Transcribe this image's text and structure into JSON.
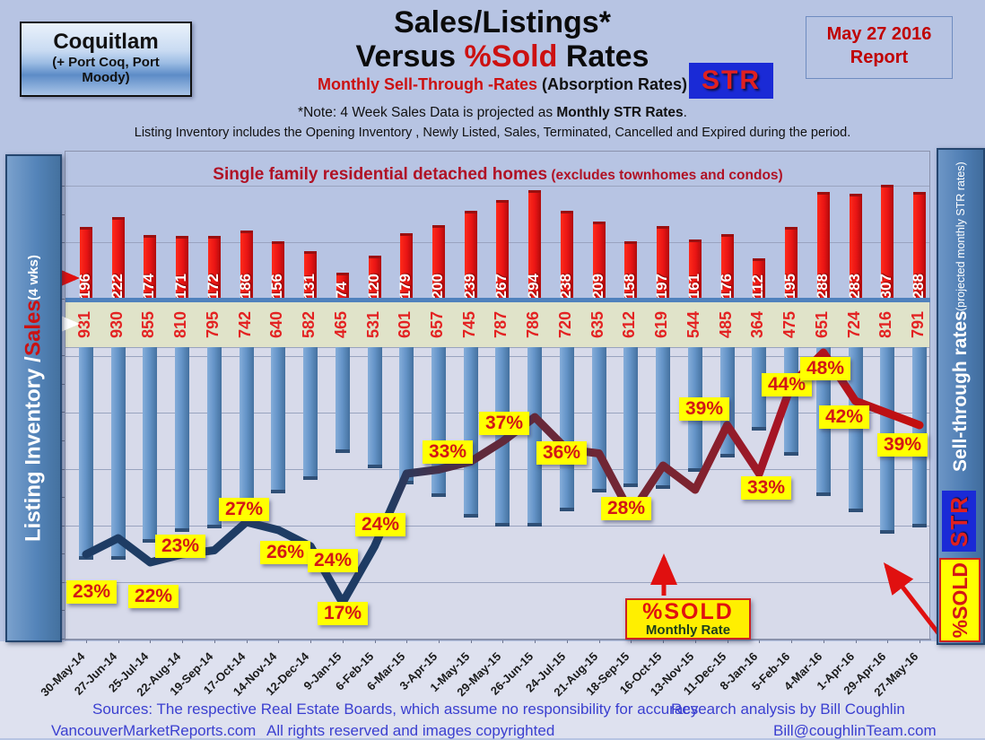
{
  "header": {
    "region_box": {
      "title": "Coquitlam",
      "subtitle": "(+ Port Coq, Port Moody)"
    },
    "title_line1": "Sales/Listings*",
    "title_line2_pre": "Versus ",
    "title_line2_highlight": "%Sold",
    "title_line2_post": " Rates",
    "subtitle_red": "Monthly Sell-Through -Rates",
    "subtitle_black": " (Absorption Rates)",
    "str_logo": "STR",
    "report_box": {
      "line1": "May 27 2016",
      "line2": "Report"
    },
    "note1_pre": "*Note: 4 Week Sales Data is projected as ",
    "note1_bold": "Monthly STR Rates",
    "note1_post": ".",
    "note2": "Listing Inventory includes the Opening Inventory , Newly Listed, Sales, Terminated, Cancelled and Expired during the period."
  },
  "left_axis": {
    "label_white": "Listing Inventory /",
    "label_red": " Sales",
    "label_small": " (4  wks)"
  },
  "right_axis": {
    "label_bold": "Sell-through rates",
    "label_small": "  (projected monthly STR rates)",
    "str_logo": "STR",
    "sold_box": "%SOLD"
  },
  "annotations": {
    "inner_title_main": "Single family residential detached homes",
    "inner_title_paren": " (excludes townhomes and condos)",
    "sold_callout_line1": "%SOLD",
    "sold_callout_line2": "Monthly Rate"
  },
  "footer": {
    "sources": "Sources:  The respective Real Estate Boards, which assume no responsibility for accuracy",
    "research": "Research analysis  by Bill Coughlin",
    "site": "VancouverMarketReports.com",
    "rights": "All rights reserved and  images copyrighted",
    "email": "Bill@coughlinTeam.com"
  },
  "chart_data": {
    "type": "combo (bar + bar + line)",
    "title": "Single family residential detached homes (excludes townhomes and condos)",
    "xlabel": "",
    "ylabel_left": "Listing Inventory / Sales (4 wks)",
    "ylabel_right": "Sell-through rates (projected monthly STR rates)",
    "grid": true,
    "legend_position": "none",
    "categories": [
      "30-May-14",
      "27-Jun-14",
      "25-Jul-14",
      "22-Aug-14",
      "19-Sep-14",
      "17-Oct-14",
      "14-Nov-14",
      "12-Dec-14",
      "9-Jan-15",
      "6-Feb-15",
      "6-Mar-15",
      "3-Apr-15",
      "1-May-15",
      "29-May-15",
      "26-Jun-15",
      "24-Jul-15",
      "21-Aug-15",
      "18-Sep-15",
      "16-Oct-15",
      "13-Nov-15",
      "11-Dec-15",
      "8-Jan-16",
      "5-Feb-16",
      "4-Mar-16",
      "1-Apr-16",
      "29-Apr-16",
      "27-May-16"
    ],
    "series": [
      {
        "name": "Sales (4 wks)",
        "type": "bar",
        "color": "#e01010",
        "values": [
          196,
          222,
          174,
          171,
          172,
          186,
          156,
          131,
          74,
          120,
          179,
          200,
          239,
          267,
          294,
          238,
          209,
          158,
          197,
          161,
          176,
          112,
          195,
          288,
          283,
          307,
          288
        ]
      },
      {
        "name": "Listing Inventory",
        "type": "bar",
        "color": "#5b8ec4",
        "values": [
          931,
          930,
          855,
          810,
          795,
          742,
          640,
          582,
          465,
          531,
          601,
          657,
          745,
          787,
          786,
          720,
          635,
          612,
          619,
          544,
          485,
          364,
          475,
          651,
          724,
          816,
          791
        ]
      },
      {
        "name": "%Sold sell-through rate",
        "type": "line",
        "color_start": "#1e3c64",
        "color_mid": "#7b2430",
        "color_end": "#c40f0f",
        "values_pct": [
          23,
          25,
          22,
          23,
          23.5,
          27,
          26,
          24,
          17,
          24,
          33,
          33.5,
          34.5,
          37,
          40,
          36,
          35.5,
          28,
          34,
          31,
          39,
          33,
          44,
          48,
          42,
          40.5,
          39
        ],
        "labels": [
          {
            "index": 0,
            "text": "23%",
            "dx": 6,
            "dy": 44
          },
          {
            "index": 2,
            "text": "22%",
            "dx": 4,
            "dy": 40
          },
          {
            "index": 3,
            "text": "23%",
            "dx": -2,
            "dy": -7
          },
          {
            "index": 5,
            "text": "27%",
            "dx": -3,
            "dy": -12
          },
          {
            "index": 6,
            "text": "26%",
            "dx": 8,
            "dy": 27
          },
          {
            "index": 7,
            "text": "24%",
            "dx": 25,
            "dy": 18
          },
          {
            "index": 8,
            "text": "17%",
            "dx": 0,
            "dy": 14
          },
          {
            "index": 9,
            "text": "24%",
            "dx": 6,
            "dy": -22
          },
          {
            "index": 10,
            "text": "33%",
            "dx": 46,
            "dy": -22
          },
          {
            "index": 13,
            "text": "37%",
            "dx": 2,
            "dy": -18
          },
          {
            "index": 15,
            "text": "36%",
            "dx": -6,
            "dy": 6
          },
          {
            "index": 17,
            "text": "28%",
            "dx": -5,
            "dy": -4
          },
          {
            "index": 20,
            "text": "39%",
            "dx": -26,
            "dy": -16
          },
          {
            "index": 21,
            "text": "33%",
            "dx": 8,
            "dy": 18
          },
          {
            "index": 22,
            "text": "44%",
            "dx": -5,
            "dy": 2
          },
          {
            "index": 23,
            "text": "48%",
            "dx": 2,
            "dy": 20
          },
          {
            "index": 24,
            "text": "42%",
            "dx": -13,
            "dy": 20
          },
          {
            "index": 26,
            "text": "39%",
            "dx": -19,
            "dy": 24
          }
        ]
      }
    ]
  }
}
